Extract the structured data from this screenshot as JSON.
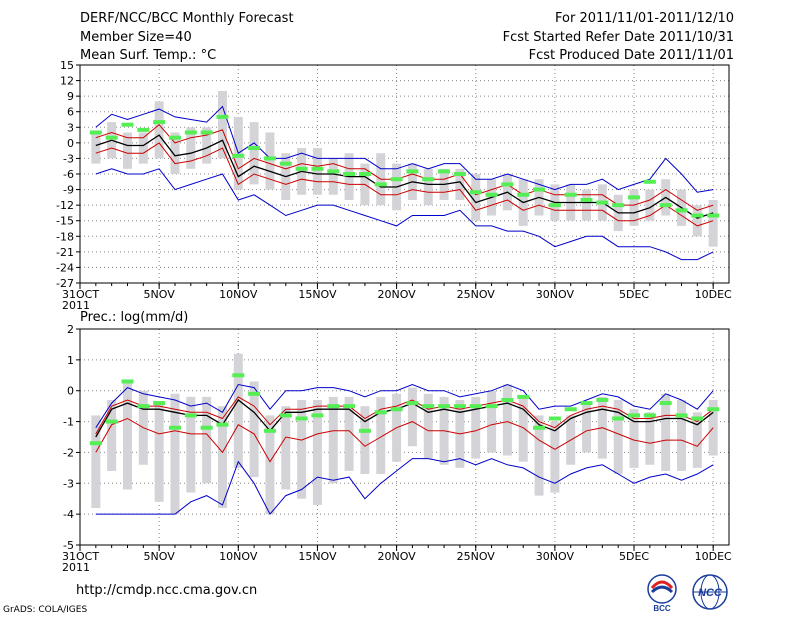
{
  "header": {
    "title": "DERF/NCC/BCC Monthly Forecast",
    "member": "Member Size=40",
    "variable": "Mean Surf. Temp.: °C",
    "period": "For 2011/11/01-2011/12/10",
    "started": "Fcst Started Refer Date 2011/10/31",
    "produced": "Fcst Produced Date 2011/11/01"
  },
  "footer": {
    "url": "http://cmdp.ncc.cma.gov.cn",
    "grads": "GrADS: COLA/IGES",
    "logo_bcc": "BCC",
    "logo_ncc": "NCC"
  },
  "colors": {
    "envelope": "#0000cc",
    "spread": "#cc0000",
    "mean": "#000000",
    "obs": "#55ee55",
    "box": "#d4d4d8",
    "grid": "#888888"
  },
  "chart_data": [
    {
      "type": "line",
      "title": "Mean Surf. Temp.: °C",
      "x_tick_labels": [
        "31OCT\n2011",
        "5NOV",
        "10NOV",
        "15NOV",
        "20NOV",
        "25NOV",
        "30NOV",
        "5DEC",
        "10DEC"
      ],
      "x_tick_days": [
        0,
        5,
        10,
        15,
        20,
        25,
        30,
        35,
        40
      ],
      "ylim": [
        -27,
        15
      ],
      "yticks": [
        -27,
        -24,
        -21,
        -18,
        -15,
        -12,
        -9,
        -6,
        -3,
        0,
        3,
        6,
        9,
        12,
        15
      ],
      "days": [
        1,
        2,
        3,
        4,
        5,
        6,
        7,
        8,
        9,
        10,
        11,
        12,
        13,
        14,
        15,
        16,
        17,
        18,
        19,
        20,
        21,
        22,
        23,
        24,
        25,
        26,
        27,
        28,
        29,
        30,
        31,
        32,
        33,
        34,
        35,
        36,
        37,
        38,
        39,
        40
      ],
      "series": [
        {
          "name": "ensemble max",
          "role": "max",
          "values": [
            3,
            5.5,
            4.5,
            5.5,
            6.5,
            5,
            4.5,
            4,
            7,
            -2,
            0,
            -3,
            -3,
            -2,
            -3,
            -3,
            -3,
            -3,
            -5,
            -5,
            -4,
            -5,
            -4,
            -4,
            -7,
            -7,
            -6,
            -7,
            -8,
            -9,
            -8,
            -8,
            -7,
            -9,
            -8,
            -7,
            -3,
            -6,
            -9.5,
            -9
          ]
        },
        {
          "name": "mean plus sd",
          "role": "hi",
          "values": [
            1,
            2,
            1,
            1,
            3.5,
            0,
            1,
            1.5,
            2.5,
            -5,
            -3,
            -4,
            -5,
            -4,
            -4.5,
            -4,
            -5,
            -5,
            -7,
            -7,
            -6,
            -7,
            -7,
            -6,
            -10,
            -9,
            -8,
            -10,
            -9,
            -10,
            -10,
            -10,
            -10,
            -12,
            -12,
            -11,
            -9,
            -11,
            -13,
            -12
          ]
        },
        {
          "name": "ensemble mean",
          "role": "mean",
          "values": [
            -0.5,
            0.5,
            -0.5,
            -0.5,
            1.5,
            -2.5,
            -2,
            -1,
            0.5,
            -6.5,
            -4.5,
            -5.5,
            -6.5,
            -5.5,
            -6,
            -6,
            -6.5,
            -6.5,
            -8.5,
            -8.5,
            -7.5,
            -8,
            -8,
            -7.5,
            -11.5,
            -10.5,
            -9.5,
            -11.5,
            -10.5,
            -11.5,
            -11.5,
            -11.5,
            -11.5,
            -13.5,
            -13.5,
            -12.5,
            -10.5,
            -12.5,
            -14.5,
            -13.5
          ]
        },
        {
          "name": "mean minus sd",
          "role": "lo",
          "values": [
            -2,
            -1,
            -2,
            -2,
            0,
            -4,
            -3.5,
            -2.5,
            -1,
            -8,
            -6,
            -7,
            -8,
            -7,
            -7.5,
            -7.5,
            -8,
            -8,
            -10,
            -10,
            -9,
            -9.5,
            -9.5,
            -9,
            -13,
            -12,
            -11,
            -13,
            -12,
            -13,
            -13,
            -13,
            -13,
            -15,
            -15,
            -14,
            -12,
            -14,
            -16,
            -15
          ]
        },
        {
          "name": "ensemble min",
          "role": "min",
          "values": [
            -6,
            -5,
            -6,
            -6,
            -5,
            -9,
            -8,
            -7,
            -6,
            -11,
            -10,
            -12,
            -14,
            -13,
            -12,
            -12,
            -13,
            -14,
            -15,
            -16,
            -14,
            -14,
            -14,
            -13,
            -16,
            -16,
            -17,
            -17,
            -18,
            -20,
            -19,
            -18,
            -18,
            -20,
            -20,
            -20,
            -21,
            -22.5,
            -22.5,
            -21
          ]
        },
        {
          "name": "members box top",
          "role": "boxtop",
          "values": [
            2,
            4,
            2,
            2,
            8,
            2,
            3,
            3,
            10,
            5,
            4,
            2,
            -2,
            -1,
            -1,
            -3,
            -2,
            -4,
            -2,
            -4,
            -4,
            -5,
            -5,
            -5,
            -6,
            -7,
            -6,
            -7,
            -7,
            -8,
            -8,
            -9,
            -8,
            -10,
            -9,
            -9,
            -7,
            -9,
            -12,
            -11
          ]
        },
        {
          "name": "members box bottom",
          "role": "boxbot",
          "values": [
            -4,
            -3,
            -5,
            -4,
            -3,
            -6,
            -5,
            -4,
            -3,
            -9,
            -8,
            -9,
            -11,
            -10,
            -10,
            -10,
            -11,
            -12,
            -12,
            -13,
            -11,
            -12,
            -11,
            -11,
            -15,
            -14,
            -13,
            -16,
            -14,
            -15,
            -15,
            -15,
            -15,
            -17,
            -16,
            -15,
            -14,
            -16,
            -18,
            -20
          ]
        },
        {
          "name": "observation",
          "role": "obs",
          "values": [
            2,
            1,
            3.5,
            2.5,
            4,
            1,
            2,
            2,
            5,
            -2.5,
            -1,
            -3,
            -4,
            -5,
            -5,
            -5.5,
            -6,
            -6,
            -8,
            -7,
            -5.5,
            -7,
            -5.5,
            -6,
            -9.5,
            -10,
            -8,
            -10,
            -9,
            -12,
            -10,
            -11,
            -11.5,
            -12,
            -10.5,
            -7.5,
            -12,
            -13,
            -14,
            -14
          ]
        }
      ]
    },
    {
      "type": "line",
      "title": "Prec.: log(mm/d)",
      "x_tick_labels": [
        "31OCT\n2011",
        "5NOV",
        "10NOV",
        "15NOV",
        "20NOV",
        "25NOV",
        "30NOV",
        "5DEC",
        "10DEC"
      ],
      "x_tick_days": [
        0,
        5,
        10,
        15,
        20,
        25,
        30,
        35,
        40
      ],
      "ylim": [
        -5,
        2
      ],
      "yticks": [
        -5,
        -4,
        -3,
        -2,
        -1,
        0,
        1,
        2
      ],
      "days": [
        1,
        2,
        3,
        4,
        5,
        6,
        7,
        8,
        9,
        10,
        11,
        12,
        13,
        14,
        15,
        16,
        17,
        18,
        19,
        20,
        21,
        22,
        23,
        24,
        25,
        26,
        27,
        28,
        29,
        30,
        31,
        32,
        33,
        34,
        35,
        36,
        37,
        38,
        39,
        40
      ],
      "series": [
        {
          "name": "ensemble max",
          "role": "max",
          "values": [
            -1.2,
            -0.4,
            0.1,
            -0.1,
            -0.2,
            -0.3,
            -0.5,
            -0.4,
            -0.7,
            0.2,
            0.1,
            -0.6,
            0,
            0,
            0.1,
            0.1,
            0,
            -0.2,
            0,
            0,
            0.2,
            0,
            0,
            -0.2,
            -0.1,
            0,
            0.2,
            0,
            -0.6,
            -0.5,
            -0.5,
            -0.3,
            -0.1,
            -0.2,
            -0.5,
            -0.6,
            -0.1,
            -0.3,
            -0.6,
            0
          ]
        },
        {
          "name": "mean plus sd",
          "role": "hi",
          "values": [
            -1.4,
            -0.5,
            -0.3,
            -0.5,
            -0.5,
            -0.6,
            -0.7,
            -0.7,
            -0.9,
            -0.2,
            -0.5,
            -1.1,
            -0.6,
            -0.6,
            -0.5,
            -0.5,
            -0.5,
            -0.9,
            -0.6,
            -0.5,
            -0.3,
            -0.6,
            -0.5,
            -0.6,
            -0.5,
            -0.4,
            -0.3,
            -0.5,
            -1,
            -1.2,
            -0.8,
            -0.6,
            -0.5,
            -0.6,
            -0.9,
            -0.9,
            -0.8,
            -0.8,
            -1,
            -0.6
          ]
        },
        {
          "name": "ensemble mean",
          "role": "mean",
          "values": [
            -1.5,
            -0.6,
            -0.4,
            -0.6,
            -0.6,
            -0.7,
            -0.8,
            -0.8,
            -1.1,
            -0.3,
            -0.7,
            -1.3,
            -0.7,
            -0.7,
            -0.6,
            -0.6,
            -0.6,
            -1,
            -0.7,
            -0.6,
            -0.4,
            -0.7,
            -0.6,
            -0.7,
            -0.6,
            -0.5,
            -0.4,
            -0.6,
            -1.1,
            -1.3,
            -0.9,
            -0.7,
            -0.6,
            -0.7,
            -1,
            -1,
            -0.9,
            -0.9,
            -1.1,
            -0.7
          ]
        },
        {
          "name": "mean minus sd",
          "role": "lo",
          "values": [
            -2,
            -1.1,
            -0.9,
            -1.2,
            -1.4,
            -1.3,
            -1.4,
            -1.4,
            -2,
            -1.1,
            -1.4,
            -2.3,
            -1.5,
            -1.6,
            -1.4,
            -1.3,
            -1.3,
            -1.8,
            -1.5,
            -1.2,
            -1,
            -1.3,
            -1.3,
            -1.4,
            -1.3,
            -1.1,
            -1,
            -1.2,
            -1.6,
            -1.9,
            -1.6,
            -1.3,
            -1.2,
            -1.4,
            -1.6,
            -1.7,
            -1.6,
            -1.6,
            -1.8,
            -1.2
          ]
        },
        {
          "name": "ensemble min",
          "role": "min",
          "values": [
            -4,
            -4,
            -4,
            -4,
            -4,
            -4,
            -3.6,
            -3.4,
            -3.7,
            -2.3,
            -3,
            -4,
            -3.4,
            -3.2,
            -2.8,
            -2.9,
            -2.8,
            -3.5,
            -3,
            -2.6,
            -2.2,
            -2.2,
            -2.3,
            -2.2,
            -2.4,
            -2.2,
            -2.4,
            -2.5,
            -2.8,
            -3,
            -2.7,
            -2.5,
            -2.4,
            -2.7,
            -3,
            -2.8,
            -2.7,
            -2.9,
            -2.7,
            -2.4
          ]
        },
        {
          "name": "members box top",
          "role": "boxtop",
          "values": [
            -0.8,
            -0.3,
            0.3,
            0,
            -0.4,
            -0.1,
            -0.2,
            -0.2,
            -0.5,
            1.2,
            0.3,
            -0.8,
            -0.5,
            -0.3,
            -0.3,
            -0.2,
            -0.2,
            -0.5,
            -0.2,
            -0.1,
            0.1,
            -0.1,
            -0.2,
            -0.3,
            -0.2,
            0,
            0.2,
            -0.2,
            -0.8,
            -1,
            -0.8,
            -0.4,
            -0.2,
            -0.3,
            -0.6,
            -0.7,
            -0.1,
            -0.3,
            -0.7,
            -0.3
          ]
        },
        {
          "name": "members box bottom",
          "role": "boxbot",
          "values": [
            -3.8,
            -2.6,
            -3.2,
            -2.4,
            -3.6,
            -4,
            -3.3,
            -3,
            -3.8,
            -2.5,
            -2.8,
            -4,
            -3.2,
            -3.5,
            -3.7,
            -3,
            -2.6,
            -2.7,
            -2.7,
            -2.3,
            -1.8,
            -2.2,
            -2.4,
            -2.5,
            -2.2,
            -2,
            -2.1,
            -2.3,
            -3.4,
            -3.3,
            -2.4,
            -2,
            -2.2,
            -2.7,
            -2.5,
            -2.4,
            -2.6,
            -2.6,
            -2.5,
            -2.1
          ]
        },
        {
          "name": "observation",
          "role": "obs",
          "values": [
            -1.7,
            -1,
            0.3,
            -0.5,
            -0.4,
            -1.2,
            -0.8,
            -1.2,
            -1.1,
            0.5,
            -0.1,
            -1.3,
            -0.8,
            -0.9,
            -0.8,
            -0.5,
            -0.5,
            -1.3,
            -0.7,
            -0.6,
            -0.4,
            -0.5,
            -0.5,
            -0.5,
            -0.5,
            -0.5,
            -0.3,
            -0.2,
            -1.2,
            -0.9,
            -0.6,
            -0.4,
            -0.3,
            -0.9,
            -0.8,
            -0.8,
            -0.4,
            -0.8,
            -0.9,
            -0.6
          ]
        }
      ]
    }
  ]
}
